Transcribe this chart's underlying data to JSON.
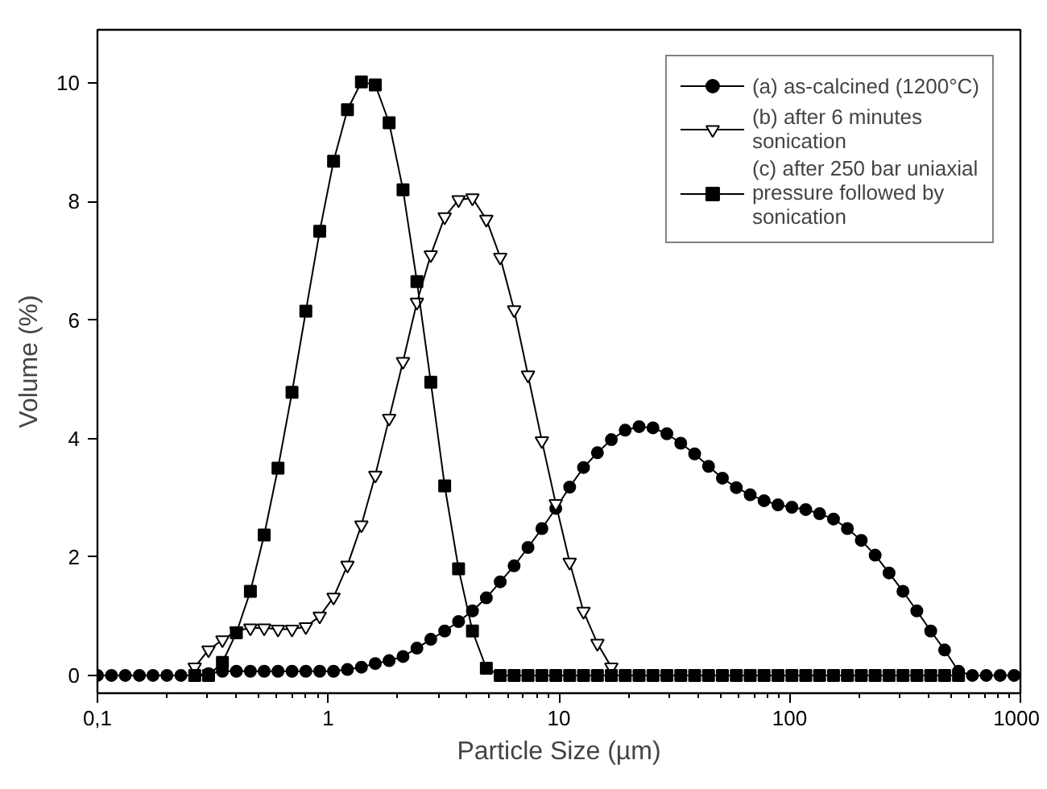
{
  "chart_data": {
    "type": "line",
    "xlabel": "Particle Size (µm)",
    "ylabel": "Volume (%)",
    "log": "x",
    "xlim": [
      0.1,
      1000
    ],
    "ylim": [
      -0.3,
      10.9
    ],
    "xticks": [
      {
        "value": 0.1,
        "label": "0,1"
      },
      1,
      10,
      100,
      1000
    ],
    "yticks": [
      0,
      2,
      4,
      6,
      8,
      10
    ],
    "grid": false,
    "legend": "top right",
    "line_style": "solid",
    "x": [
      0.1,
      0.115,
      0.132,
      0.152,
      0.174,
      0.2,
      0.23,
      0.264,
      0.303,
      0.348,
      0.4,
      0.46,
      0.528,
      0.606,
      0.697,
      0.8,
      0.919,
      1.055,
      1.212,
      1.393,
      1.6,
      1.837,
      2.11,
      2.424,
      2.784,
      3.198,
      3.673,
      4.219,
      4.846,
      5.566,
      6.394,
      7.344,
      8.436,
      9.69,
      11.13,
      12.78,
      14.68,
      16.87,
      19.37,
      22.25,
      25.56,
      29.36,
      33.72,
      38.74,
      44.5,
      51.11,
      58.71,
      67.43,
      77.46,
      88.97,
      102.2,
      117.4,
      134.8,
      154.9,
      177.9,
      204.3,
      234.7,
      269.6,
      309.7,
      355.7,
      408.6,
      469.3,
      539.1,
      619.2,
      711.3,
      817,
      938.5
    ],
    "series": [
      {
        "name": "(a) as-calcined (1200°C)",
        "color": "#000000",
        "marker": "circle",
        "values": [
          0,
          0,
          0,
          0,
          0,
          0,
          0,
          0,
          0.03,
          0.07,
          0.07,
          0.07,
          0.07,
          0.07,
          0.07,
          0.07,
          0.07,
          0.07,
          0.1,
          0.14,
          0.2,
          0.25,
          0.32,
          0.46,
          0.61,
          0.75,
          0.91,
          1.09,
          1.31,
          1.58,
          1.85,
          2.16,
          2.48,
          2.82,
          3.18,
          3.51,
          3.76,
          3.98,
          4.14,
          4.2,
          4.18,
          4.08,
          3.92,
          3.74,
          3.53,
          3.33,
          3.17,
          3.05,
          2.95,
          2.88,
          2.84,
          2.8,
          2.73,
          2.64,
          2.48,
          2.28,
          2.03,
          1.73,
          1.42,
          1.09,
          0.75,
          0.43,
          0.07,
          0,
          0,
          0,
          0
        ]
      },
      {
        "name": "(b) after 6 minutes sonication",
        "color": "#000000",
        "marker": "triangle",
        "values": [
          null,
          null,
          null,
          null,
          null,
          null,
          null,
          0.14,
          0.43,
          0.6,
          0.75,
          0.8,
          0.8,
          0.78,
          0.78,
          0.82,
          1.0,
          1.32,
          1.86,
          2.54,
          3.38,
          4.34,
          5.3,
          6.3,
          7.1,
          7.74,
          8.03,
          8.06,
          7.7,
          7.06,
          6.17,
          5.07,
          3.96,
          2.9,
          1.91,
          1.08,
          0.54,
          0.14,
          null,
          null,
          null,
          null,
          null,
          null,
          null,
          null,
          null,
          null,
          null,
          null,
          null,
          null,
          null,
          null,
          null,
          null,
          null,
          null,
          null,
          null,
          null,
          null,
          null,
          null,
          null,
          null,
          null
        ]
      },
      {
        "name": "(c) after 250 bar uniaxial pressure followed by sonication",
        "color": "#000000",
        "marker": "square",
        "values": [
          null,
          null,
          null,
          null,
          null,
          null,
          null,
          0,
          0,
          0.22,
          0.72,
          1.42,
          2.37,
          3.5,
          4.78,
          6.15,
          7.5,
          8.68,
          9.55,
          10.02,
          9.97,
          9.33,
          8.2,
          6.65,
          4.95,
          3.2,
          1.8,
          0.75,
          0.12,
          0,
          0,
          0,
          0,
          0,
          0,
          0,
          0,
          0,
          0,
          0,
          0,
          0,
          0,
          0,
          0,
          0,
          0,
          0,
          0,
          0,
          0,
          0,
          0,
          0,
          0,
          0,
          0,
          0,
          0,
          0,
          0,
          0,
          0,
          null,
          null,
          null,
          null
        ]
      }
    ]
  }
}
